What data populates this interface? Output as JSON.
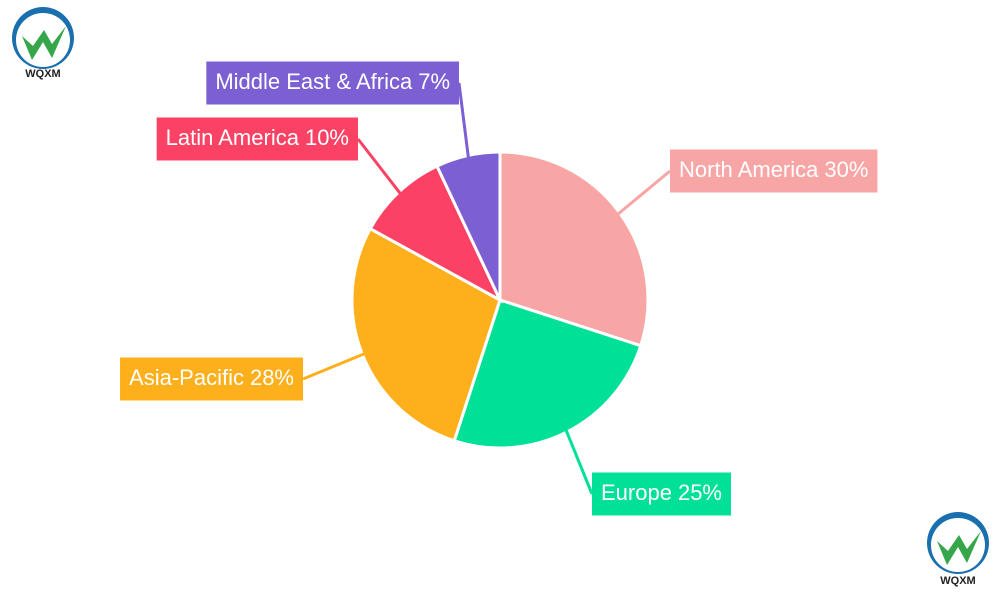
{
  "chart_data": {
    "type": "pie",
    "categories": [
      "North America",
      "Europe",
      "Asia-Pacific",
      "Latin America",
      "Middle East & Africa"
    ],
    "values": [
      30,
      25,
      28,
      10,
      7
    ],
    "value_labels": [
      "30%",
      "25%",
      "28%",
      "10%",
      "7%"
    ],
    "colors": [
      "#f8a5a5",
      "#00e096",
      "#fdb01b",
      "#fc4264",
      "#7b5fd3"
    ]
  },
  "logo": {
    "text": "WQXM"
  }
}
